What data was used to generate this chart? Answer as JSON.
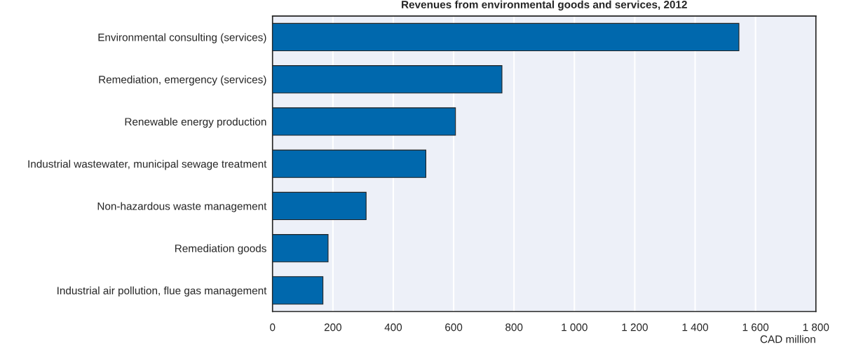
{
  "chart_data": {
    "type": "bar",
    "orientation": "horizontal",
    "title": "Revenues from environmental goods and services, 2012",
    "xlabel": "CAD million",
    "categories": [
      "Environmental consulting (services)",
      "Remediation, emergency (services)",
      "Renewable energy production",
      "Industrial wastewater, municipal sewage treatment",
      "Non-hazardous waste management",
      "Remediation goods",
      "Industrial air pollution, flue gas management"
    ],
    "values": [
      1545,
      760,
      606,
      508,
      310,
      184,
      167
    ],
    "color": "#0068ad",
    "xlim": [
      0,
      1800
    ],
    "xticks": [
      0,
      200,
      400,
      600,
      800,
      {
        "value": 1000,
        "label": "1 000"
      },
      {
        "value": 1200,
        "label": "1 200"
      },
      {
        "value": 1400,
        "label": "1 400"
      },
      {
        "value": 1600,
        "label": "1 600"
      },
      {
        "value": 1800,
        "label": "1 800"
      }
    ],
    "grid": "x"
  }
}
